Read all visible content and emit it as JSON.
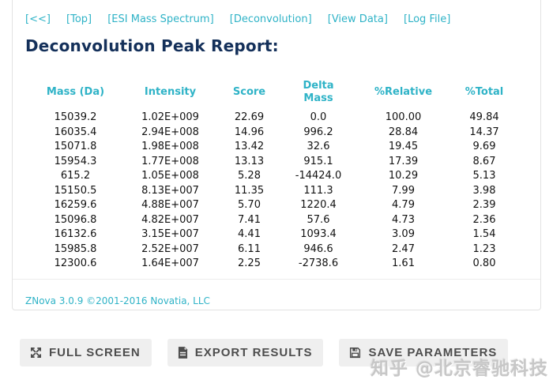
{
  "colors": {
    "accent": "#2fb3c7",
    "title_text": "#14305a",
    "button_bg": "#efefef",
    "button_text": "#4d4d4d"
  },
  "nav": {
    "links": [
      {
        "name": "back",
        "label": "[<<]"
      },
      {
        "name": "top",
        "label": "[Top]"
      },
      {
        "name": "esi-mass-spectrum",
        "label": "[ESI Mass Spectrum]"
      },
      {
        "name": "deconvolution",
        "label": "[Deconvolution]"
      },
      {
        "name": "view-data",
        "label": "[View Data]"
      },
      {
        "name": "log-file",
        "label": "[Log File]"
      }
    ]
  },
  "title": "Deconvolution Peak Report:",
  "table": {
    "headers": [
      "Mass (Da)",
      "Intensity",
      "Score",
      "Delta Mass",
      "%Relative",
      "%Total"
    ],
    "rows": [
      [
        "15039.2",
        "1.02E+009",
        "22.69",
        "0.0",
        "100.00",
        "49.84"
      ],
      [
        "16035.4",
        "2.94E+008",
        "14.96",
        "996.2",
        "28.84",
        "14.37"
      ],
      [
        "15071.8",
        "1.98E+008",
        "13.42",
        "32.6",
        "19.45",
        "9.69"
      ],
      [
        "15954.3",
        "1.77E+008",
        "13.13",
        "915.1",
        "17.39",
        "8.67"
      ],
      [
        "615.2",
        "1.05E+008",
        "5.28",
        "-14424.0",
        "10.29",
        "5.13"
      ],
      [
        "15150.5",
        "8.13E+007",
        "11.35",
        "111.3",
        "7.99",
        "3.98"
      ],
      [
        "16259.6",
        "4.88E+007",
        "5.70",
        "1220.4",
        "4.79",
        "2.39"
      ],
      [
        "15096.8",
        "4.82E+007",
        "7.41",
        "57.6",
        "4.73",
        "2.36"
      ],
      [
        "16132.6",
        "3.15E+007",
        "4.41",
        "1093.4",
        "3.09",
        "1.54"
      ],
      [
        "15985.8",
        "2.52E+007",
        "6.11",
        "946.6",
        "2.47",
        "1.23"
      ],
      [
        "12300.6",
        "1.64E+007",
        "2.25",
        "-2738.6",
        "1.61",
        "0.80"
      ]
    ]
  },
  "footer": {
    "version_text": "ZNova 3.0.9 ©2001-2016 Novatia, LLC"
  },
  "buttons": [
    {
      "name": "full-screen",
      "label": "FULL SCREEN",
      "icon": "fullscreen-icon"
    },
    {
      "name": "export-results",
      "label": "EXPORT RESULTS",
      "icon": "export-document-icon"
    },
    {
      "name": "save-parameters",
      "label": "SAVE PARAMETERS",
      "icon": "save-disk-icon"
    }
  ],
  "watermark": "知乎 @北京睿驰科技"
}
